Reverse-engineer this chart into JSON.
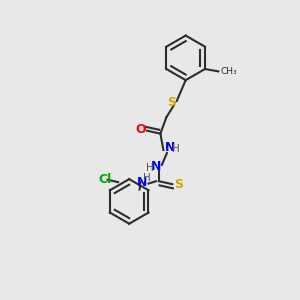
{
  "background_color": "#e8e8e8",
  "bond_color": "#2d2d2d",
  "atom_colors": {
    "O": "#ff0000",
    "N": "#0000ff",
    "S": "#ccaa00",
    "Cl": "#00aa00",
    "C": "#2d2d2d",
    "H": "#555555"
  },
  "figsize": [
    3.0,
    3.0
  ],
  "dpi": 100
}
